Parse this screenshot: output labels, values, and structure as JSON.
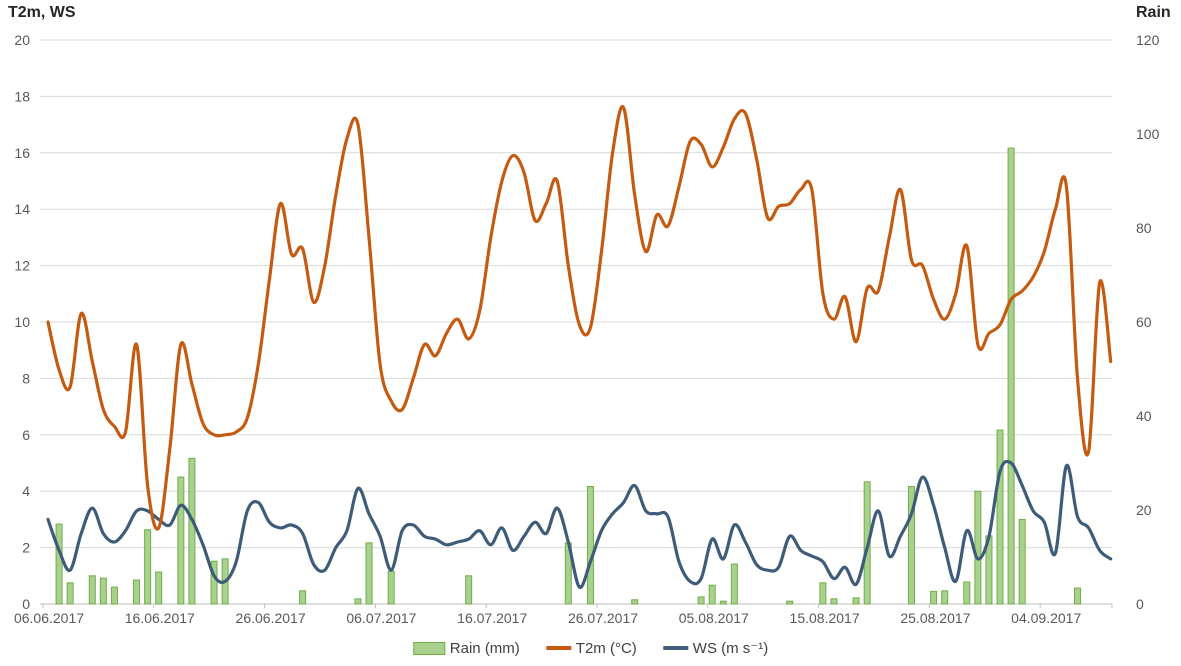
{
  "titles": {
    "left_axis": "T2m, WS",
    "right_axis": "Rain"
  },
  "legend": {
    "rain": "Rain (mm)",
    "t2m": "T2m (°C)",
    "ws": "WS (m s⁻¹)"
  },
  "colors": {
    "background": "#FFFFFF",
    "grid": "#D9D9D9",
    "axis_line": "#BFBFBF",
    "tick_text": "#595959",
    "title_text": "#262626",
    "legend_text": "#404040",
    "rain_fill": "#A9D18E",
    "rain_stroke": "#70AD47",
    "t2m_line": "#C55A11",
    "ws_line": "#3E5C7A"
  },
  "chart_data": {
    "type": "bar+line combo, dual y-axis, daily values",
    "title": "",
    "x_start_date": "06.06.2017",
    "x_end_date": "10.09.2017",
    "x_interval": "daily",
    "x_tick_labels": [
      "06.06.2017",
      "16.06.2017",
      "26.06.2017",
      "06.07.2017",
      "16.07.2017",
      "26.07.2017",
      "05.08.2017",
      "15.08.2017",
      "25.08.2017",
      "04.09.2017"
    ],
    "left_axis": {
      "title": "T2m, WS",
      "range": [
        0,
        20
      ],
      "tick_step": 2,
      "ticks": [
        0,
        2,
        4,
        6,
        8,
        10,
        12,
        14,
        16,
        18,
        20
      ]
    },
    "right_axis": {
      "title": "Rain",
      "range": [
        0,
        120
      ],
      "tick_step": 20,
      "ticks": [
        0,
        20,
        40,
        60,
        80,
        100,
        120
      ]
    },
    "grid": "horizontal gridlines every 2 left-axis units",
    "legend_position": "bottom center",
    "series": [
      {
        "name": "Rain (mm)",
        "type": "bar",
        "axis": "right",
        "fill": "#A9D18E",
        "stroke": "#70AD47",
        "values": [
          0,
          17,
          4.5,
          0,
          6,
          5.5,
          3.6,
          0,
          5.1,
          15.8,
          6.8,
          0,
          27,
          31,
          0,
          9.1,
          9.6,
          0,
          0,
          0,
          0,
          0,
          0,
          2.8,
          0,
          0,
          0,
          0,
          1.1,
          13,
          0,
          7,
          0,
          0,
          0,
          0,
          0,
          0,
          6,
          0,
          0,
          0,
          0,
          0,
          0,
          0,
          0,
          13,
          0,
          25,
          0,
          0,
          0,
          0.9,
          0,
          0,
          0,
          0,
          0,
          1.5,
          4,
          0.6,
          8.5,
          0,
          0,
          0,
          0,
          0.6,
          0,
          0,
          4.5,
          1.1,
          0,
          1.3,
          26,
          0,
          0,
          0,
          25,
          0,
          2.7,
          2.8,
          0,
          4.7,
          24,
          14.5,
          37,
          97,
          18,
          0,
          0,
          0,
          0,
          3.4,
          0,
          0,
          0
        ]
      },
      {
        "name": "WS (m s⁻¹)",
        "type": "line",
        "axis": "left",
        "color": "#3E5C7A",
        "values": [
          3.0,
          1.9,
          1.2,
          2.5,
          3.4,
          2.5,
          2.2,
          2.6,
          3.3,
          3.3,
          3.0,
          2.8,
          3.5,
          3.0,
          2.1,
          1.0,
          0.8,
          1.5,
          3.3,
          3.6,
          2.9,
          2.7,
          2.8,
          2.5,
          1.4,
          1.2,
          2.0,
          2.6,
          4.1,
          3.2,
          2.4,
          1.2,
          2.6,
          2.8,
          2.4,
          2.3,
          2.1,
          2.2,
          2.3,
          2.6,
          2.1,
          2.7,
          1.9,
          2.4,
          2.9,
          2.5,
          3.4,
          2.2,
          0.6,
          1.5,
          2.6,
          3.2,
          3.6,
          4.2,
          3.3,
          3.2,
          3.1,
          1.5,
          0.8,
          0.9,
          2.3,
          1.6,
          2.8,
          2.2,
          1.4,
          1.2,
          1.3,
          2.4,
          1.9,
          1.7,
          1.5,
          0.9,
          1.3,
          0.7,
          2.0,
          3.3,
          1.7,
          2.4,
          3.2,
          4.5,
          3.5,
          2.0,
          0.8,
          2.6,
          1.6,
          2.4,
          4.7,
          5.0,
          4.2,
          3.3,
          2.9,
          1.8,
          4.9,
          3.1,
          2.7,
          1.9,
          1.6
        ]
      },
      {
        "name": "T2m (°C)",
        "type": "line",
        "axis": "left",
        "color": "#C55A11",
        "values": [
          10.0,
          8.3,
          7.7,
          10.3,
          8.6,
          6.9,
          6.3,
          6.1,
          9.2,
          4.2,
          2.7,
          5.5,
          9.2,
          7.8,
          6.4,
          6.0,
          6.0,
          6.1,
          6.6,
          8.5,
          11.5,
          14.2,
          12.4,
          12.6,
          10.7,
          12.0,
          14.5,
          16.5,
          17.0,
          13.0,
          8.5,
          7.2,
          6.9,
          8.0,
          9.2,
          8.8,
          9.6,
          10.1,
          9.4,
          10.4,
          13.0,
          15.0,
          15.9,
          15.3,
          13.6,
          14.2,
          15.0,
          12.0,
          9.9,
          9.8,
          12.5,
          16.0,
          17.6,
          14.5,
          12.5,
          13.8,
          13.4,
          14.8,
          16.4,
          16.3,
          15.5,
          16.2,
          17.2,
          17.4,
          15.8,
          13.7,
          14.1,
          14.2,
          14.7,
          14.7,
          11.0,
          10.1,
          10.9,
          9.3,
          11.2,
          11.1,
          13.0,
          14.7,
          12.2,
          12.0,
          10.8,
          10.1,
          11.0,
          12.7,
          9.2,
          9.6,
          9.9,
          10.8,
          11.1,
          11.6,
          12.5,
          14.0,
          14.8,
          8.0,
          5.4,
          11.4,
          8.6
        ]
      }
    ]
  }
}
